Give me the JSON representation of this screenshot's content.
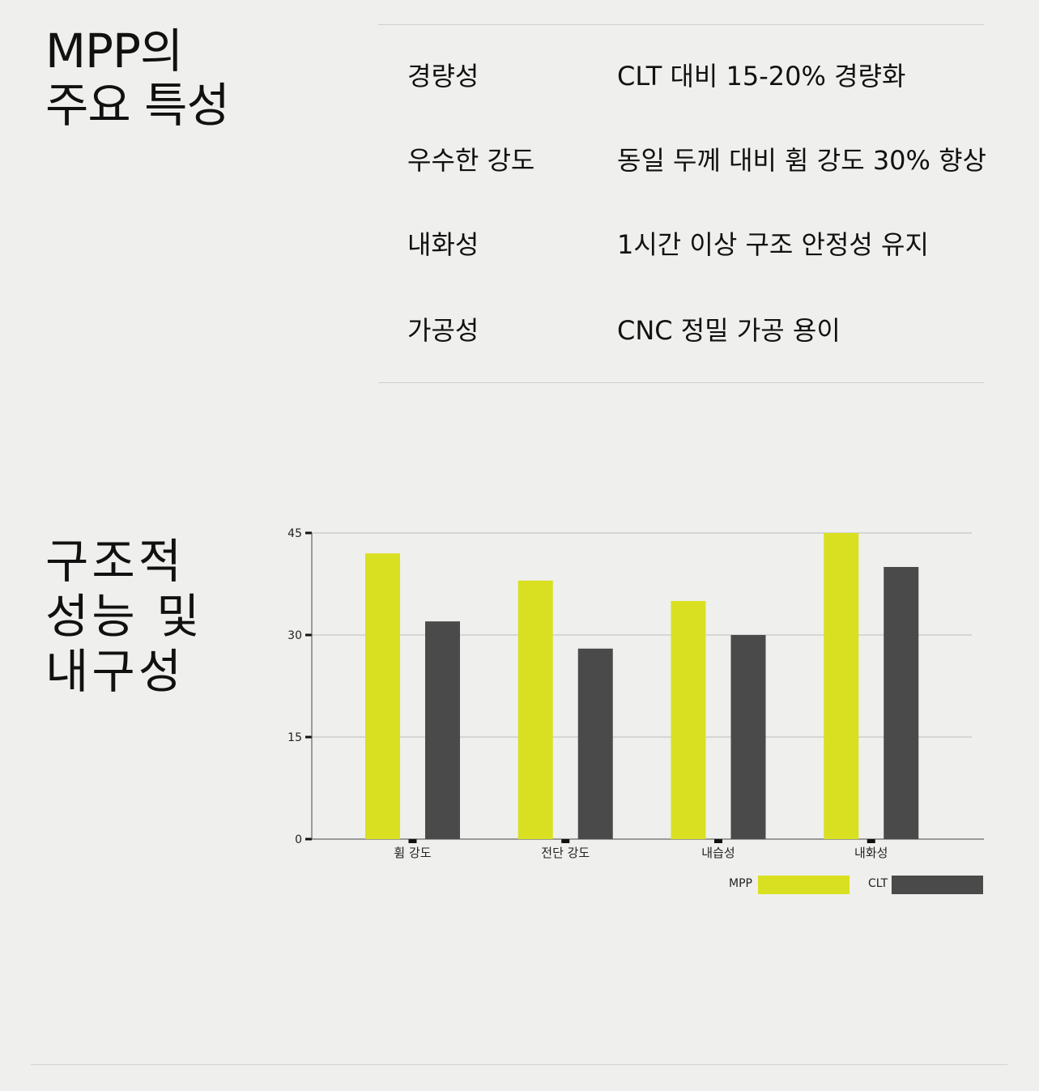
{
  "section1": {
    "title_lines": [
      "MPP의",
      "주요 특성"
    ],
    "rows": [
      {
        "label": "경량성",
        "value": "CLT 대비 15-20% 경량화"
      },
      {
        "label": "우수한 강도",
        "value": "동일 두께 대비 휨 강도 30% 향상"
      },
      {
        "label": "내화성",
        "value": "1시간 이상 구조 안정성 유지"
      },
      {
        "label": "가공성",
        "value": "CNC 정밀 가공 용이"
      }
    ]
  },
  "section2": {
    "title_lines": [
      "구조적",
      "성능 및",
      "내구성"
    ]
  },
  "colors": {
    "background": "#efefed",
    "mpp": "#d9e021",
    "clt": "#4a4a4a"
  },
  "chart_data": {
    "type": "bar",
    "categories": [
      "휨 강도",
      "전단 강도",
      "내습성",
      "내화성"
    ],
    "series": [
      {
        "name": "MPP",
        "values": [
          42,
          38,
          35,
          45
        ]
      },
      {
        "name": "CLT",
        "values": [
          32,
          28,
          30,
          40
        ]
      }
    ],
    "yticks": [
      "0",
      "15",
      "30",
      "45"
    ],
    "ylim": [
      0,
      45
    ],
    "grid": true,
    "legend_position": "bottom-right",
    "title": "",
    "xlabel": "",
    "ylabel": ""
  }
}
